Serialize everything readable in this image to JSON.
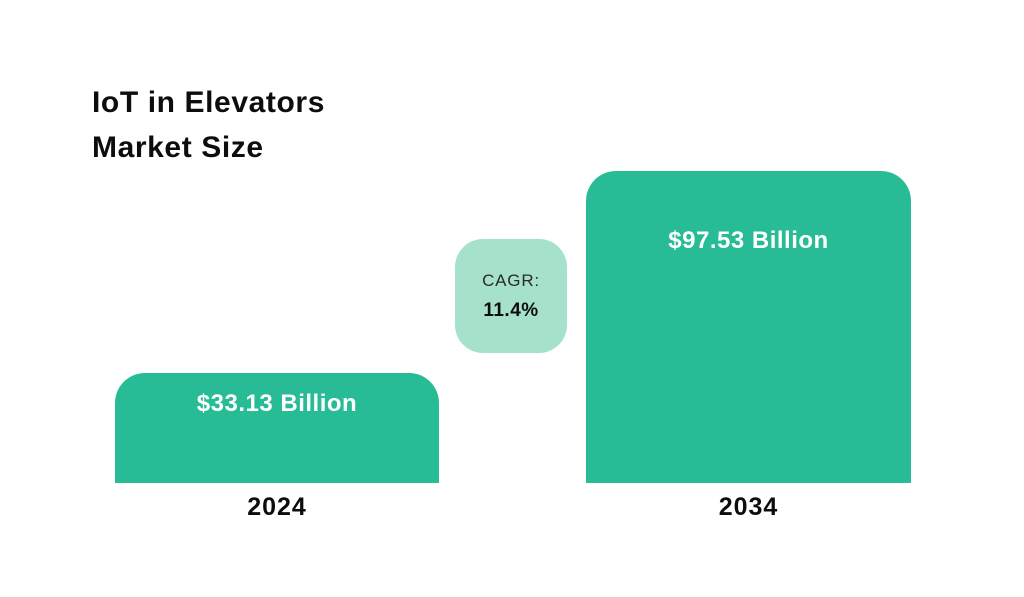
{
  "title": {
    "line1": "IoT in Elevators",
    "line2": "Market Size"
  },
  "bars": [
    {
      "year": "2024",
      "value_label": "$33.13 Billion"
    },
    {
      "year": "2034",
      "value_label": "$97.53 Billion"
    }
  ],
  "cagr": {
    "label": "CAGR:",
    "value": "11.4%"
  },
  "chart_data": {
    "type": "bar",
    "title": "IoT in Elevators Market Size",
    "categories": [
      "2024",
      "2034"
    ],
    "values": [
      33.13,
      97.53
    ],
    "data_labels": [
      "$33.13 Billion",
      "$97.53 Billion"
    ],
    "annotations": [
      {
        "text": "CAGR: 11.4%",
        "position": "between-bars"
      }
    ],
    "xlabel": "",
    "ylabel": "",
    "ylim": [
      0,
      105
    ],
    "grid": false,
    "legend": false,
    "axes_visible": false,
    "colors": {
      "bar_fill": "#27bc96",
      "badge_fill": "#a5e1cb",
      "value_label_text": "#ffffff",
      "title_text": "#0d0d0d",
      "axis_label_text": "#0d0d0d",
      "background": "#ffffff"
    }
  }
}
